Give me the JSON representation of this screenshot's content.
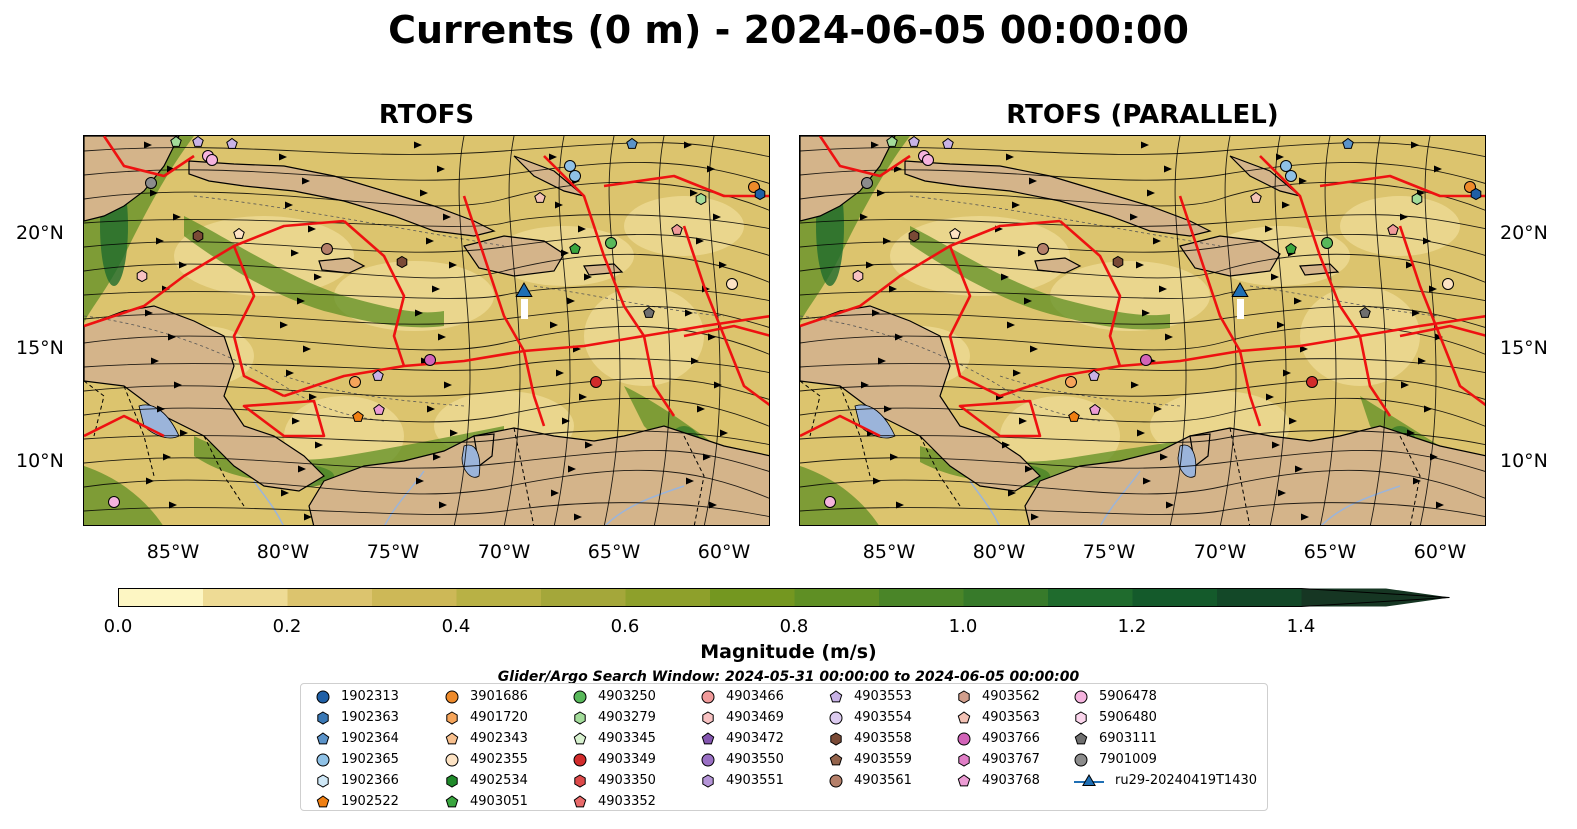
{
  "title": "Currents (0 m) - 2024-06-05 00:00:00",
  "panels": [
    {
      "title": "RTOFS"
    },
    {
      "title": "RTOFS (PARALLEL)"
    }
  ],
  "lat_labels": [
    "20°N",
    "15°N",
    "10°N"
  ],
  "lon_labels": [
    "85°W",
    "80°W",
    "75°W",
    "70°W",
    "65°W",
    "60°W"
  ],
  "colorbar": {
    "label": "Magnitude (m/s)",
    "ticks": [
      "0.0",
      "0.2",
      "0.4",
      "0.6",
      "0.8",
      "1.0",
      "1.2",
      "1.4"
    ],
    "min": 0.0,
    "max": 1.5,
    "step": 0.1,
    "extend": "max",
    "colors": [
      "#fdf6c3",
      "#eedb95",
      "#dcc46e",
      "#cdb857",
      "#b8b145",
      "#a4a73a",
      "#8ea02b",
      "#749720",
      "#5f8f24",
      "#4a8528",
      "#377a2a",
      "#1f6b2d",
      "#145a2b",
      "#134828",
      "#163623"
    ]
  },
  "search_window": "Glider/Argo Search Window: 2024-05-31 00:00:00 to 2024-06-05 00:00:00",
  "legend": {
    "columns": [
      [
        {
          "label": "1902313",
          "marker": "circle",
          "color": "#1f5fa6"
        },
        {
          "label": "1902363",
          "marker": "hexagon",
          "color": "#3a78b5"
        },
        {
          "label": "1902364",
          "marker": "pentagon",
          "color": "#5b93c9"
        },
        {
          "label": "1902365",
          "marker": "circle",
          "color": "#8fc1e6"
        },
        {
          "label": "1902366",
          "marker": "hexagon",
          "color": "#cfe8f7"
        },
        {
          "label": "1902522",
          "marker": "pentagon",
          "color": "#f07f12"
        }
      ],
      [
        {
          "label": "3901686",
          "marker": "circle",
          "color": "#ee8a2a"
        },
        {
          "label": "4901720",
          "marker": "hexagon",
          "color": "#f5a45a"
        },
        {
          "label": "4902343",
          "marker": "pentagon",
          "color": "#f8c08e"
        },
        {
          "label": "4902355",
          "marker": "circle",
          "color": "#fde3c4"
        },
        {
          "label": "4902534",
          "marker": "hexagon",
          "color": "#1f8a2a"
        },
        {
          "label": "4903051",
          "marker": "pentagon",
          "color": "#3aa63f"
        }
      ],
      [
        {
          "label": "4903250",
          "marker": "circle",
          "color": "#58b85a"
        },
        {
          "label": "4903279",
          "marker": "hexagon",
          "color": "#a3dc9a"
        },
        {
          "label": "4903345",
          "marker": "pentagon",
          "color": "#d8f2d0"
        },
        {
          "label": "4903349",
          "marker": "circle",
          "color": "#d22b2b"
        },
        {
          "label": "4903350",
          "marker": "hexagon",
          "color": "#dd4a4a"
        },
        {
          "label": "4903352",
          "marker": "pentagon",
          "color": "#e86a6a"
        }
      ],
      [
        {
          "label": "4903466",
          "marker": "circle",
          "color": "#f09a9a"
        },
        {
          "label": "4903469",
          "marker": "hexagon",
          "color": "#f8c2c2"
        },
        {
          "label": "4903472",
          "marker": "pentagon",
          "color": "#8456b0"
        },
        {
          "label": "4903550",
          "marker": "circle",
          "color": "#9a70c4"
        },
        {
          "label": "4903551",
          "marker": "hexagon",
          "color": "#b595d8"
        }
      ],
      [
        {
          "label": "4903553",
          "marker": "pentagon",
          "color": "#c8b2e6"
        },
        {
          "label": "4903554",
          "marker": "circle",
          "color": "#dccbf0"
        },
        {
          "label": "4903558",
          "marker": "hexagon",
          "color": "#7a4a36"
        },
        {
          "label": "4903559",
          "marker": "pentagon",
          "color": "#94644c"
        },
        {
          "label": "4903561",
          "marker": "circle",
          "color": "#b5806a"
        }
      ],
      [
        {
          "label": "4903562",
          "marker": "hexagon",
          "color": "#d19e8c"
        },
        {
          "label": "4903563",
          "marker": "pentagon",
          "color": "#f3c2b5"
        },
        {
          "label": "4903766",
          "marker": "circle",
          "color": "#d263b8"
        },
        {
          "label": "4903767",
          "marker": "hexagon",
          "color": "#e07ec6"
        },
        {
          "label": "4903768",
          "marker": "pentagon",
          "color": "#ec9cd4"
        }
      ],
      [
        {
          "label": "5906478",
          "marker": "circle",
          "color": "#f5b3de"
        },
        {
          "label": "5906480",
          "marker": "hexagon",
          "color": "#fbd5ec"
        },
        {
          "label": "6903111",
          "marker": "pentagon",
          "color": "#6f6f6f"
        },
        {
          "label": "7901009",
          "marker": "circle",
          "color": "#8c8c8c"
        },
        {
          "label": "ru29-20240419T1430",
          "marker": "triangle-line",
          "color": "#1f6fb4"
        }
      ]
    ]
  }
}
